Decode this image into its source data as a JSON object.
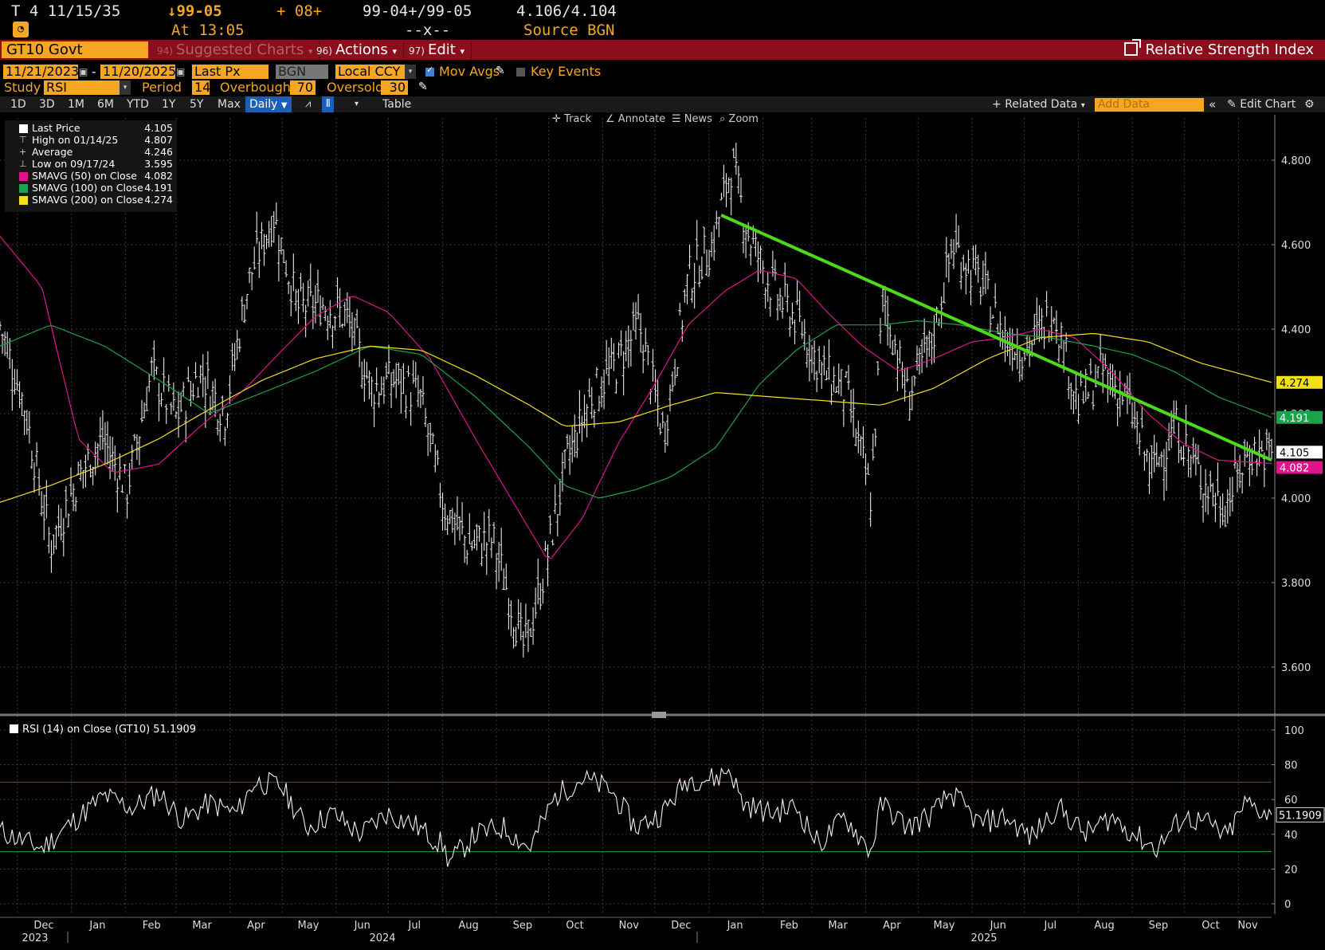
{
  "quote": {
    "ticker_time": "T 4 11/15/35",
    "last": "↓99-05",
    "change": "+ 08+",
    "bid_ask": "99-04+/99-05",
    "yields": "4.106/4.104",
    "at_time": "At 13:05",
    "dashes": "--x--",
    "source": "Source BGN"
  },
  "toolbar": {
    "security": "GT10 Govt",
    "suggested": "Suggested Charts",
    "suggested_num": "94)",
    "actions": "Actions",
    "actions_num": "96)",
    "edit": "Edit",
    "edit_num": "97)",
    "title": "Relative Strength Index"
  },
  "params": {
    "start_date": "11/21/2023",
    "end_date": "11/20/2025",
    "date_sep": "-",
    "field": "Last Px",
    "source": "BGN",
    "currency": "Local CCY",
    "mov_avgs": "Mov Avgs",
    "key_events": "Key Events",
    "study_label": "Study",
    "study": "RSI",
    "period_label": "Period",
    "period": "14",
    "overbought_label": "Overbought",
    "overbought": "70",
    "oversold_label": "Oversold",
    "oversold": "30"
  },
  "ranges": [
    "1D",
    "3D",
    "1M",
    "6M",
    "YTD",
    "1Y",
    "5Y",
    "Max"
  ],
  "frequency": "Daily",
  "table_label": "Table",
  "related_data": "Related Data",
  "add_data_placeholder": "Add Data",
  "edit_chart": "Edit Chart",
  "chart_tools": [
    "Track",
    "Annotate",
    "News",
    "Zoom"
  ],
  "legend": [
    {
      "name": "Last Price",
      "value": "4.105",
      "color": "#ffffff"
    },
    {
      "name": "High on 01/14/25",
      "value": "4.807",
      "color": ""
    },
    {
      "name": "Average",
      "value": "4.246",
      "color": ""
    },
    {
      "name": "Low on 09/17/24",
      "value": "3.595",
      "color": ""
    },
    {
      "name": "SMAVG (50)  on Close",
      "value": "4.082",
      "color": "#e0138c"
    },
    {
      "name": "SMAVG (100)  on Close",
      "value": "4.191",
      "color": "#1aa34a"
    },
    {
      "name": "SMAVG (200)  on Close",
      "value": "4.274",
      "color": "#f2e01b"
    }
  ],
  "rsi_legend": "RSI (14)  on Close (GT10) 51.1909",
  "colors": {
    "accent": "#f5a623",
    "command_bar": "#8b0e1d",
    "sma50": "#e0138c",
    "sma100": "#1aa34a",
    "sma200": "#f2e01b",
    "trendline": "#4bdb1a",
    "overbought_line": "#cc2222",
    "oversold_line": "#1aa34a"
  },
  "chart_data": [
    {
      "type": "ohlc",
      "title": "GT10 Govt",
      "ylim": [
        3.5,
        4.9
      ],
      "yticks": [
        "4.800",
        "4.600",
        "4.400",
        "4.200",
        "4.000",
        "3.800",
        "3.600"
      ],
      "ytick_values": [
        4.8,
        4.6,
        4.4,
        4.2,
        4.0,
        3.8,
        3.6
      ],
      "grid": true,
      "legend_position": "top-left",
      "x_months": [
        "Dec",
        "Jan",
        "Feb",
        "Mar",
        "Apr",
        "May",
        "Jun",
        "Jul",
        "Aug",
        "Sep",
        "Oct",
        "Nov",
        "Dec",
        "Jan",
        "Feb",
        "Mar",
        "Apr",
        "May",
        "Jun",
        "Jul",
        "Aug",
        "Sep",
        "Oct",
        "Nov"
      ],
      "x_years": [
        "2023",
        "2024",
        "2025"
      ],
      "x_range": [
        "2023-11-21",
        "2025-11-20"
      ],
      "price": {
        "name": "Last Price",
        "x": [
          "2023-11-21",
          "2023-12-05",
          "2023-12-20",
          "2024-01-05",
          "2024-01-19",
          "2024-02-02",
          "2024-02-16",
          "2024-03-01",
          "2024-03-15",
          "2024-03-29",
          "2024-04-12",
          "2024-04-26",
          "2024-05-10",
          "2024-05-24",
          "2024-06-07",
          "2024-06-21",
          "2024-07-05",
          "2024-07-19",
          "2024-08-02",
          "2024-08-16",
          "2024-08-30",
          "2024-09-17",
          "2024-09-27",
          "2024-10-11",
          "2024-10-25",
          "2024-11-08",
          "2024-11-22",
          "2024-12-06",
          "2024-12-20",
          "2025-01-03",
          "2025-01-14",
          "2025-01-24",
          "2025-02-07",
          "2025-02-21",
          "2025-03-07",
          "2025-03-21",
          "2025-04-04",
          "2025-04-11",
          "2025-04-25",
          "2025-05-09",
          "2025-05-21",
          "2025-06-06",
          "2025-06-20",
          "2025-07-03",
          "2025-07-18",
          "2025-08-01",
          "2025-08-15",
          "2025-08-29",
          "2025-09-12",
          "2025-09-26",
          "2025-10-10",
          "2025-10-24",
          "2025-11-07",
          "2025-11-20"
        ],
        "y": [
          4.41,
          4.22,
          3.89,
          4.05,
          4.14,
          4.02,
          4.3,
          4.19,
          4.3,
          4.2,
          4.52,
          4.67,
          4.45,
          4.46,
          4.43,
          4.26,
          4.28,
          4.24,
          3.98,
          3.89,
          3.9,
          3.64,
          3.8,
          4.08,
          4.24,
          4.31,
          4.41,
          4.15,
          4.52,
          4.6,
          4.79,
          4.62,
          4.49,
          4.42,
          4.3,
          4.25,
          4.0,
          4.48,
          4.24,
          4.37,
          4.6,
          4.51,
          4.38,
          4.35,
          4.45,
          4.22,
          4.3,
          4.23,
          4.06,
          4.17,
          4.05,
          3.98,
          4.11,
          4.105
        ]
      },
      "series": [
        {
          "name": "SMAVG (50)",
          "x": [
            "2023-11-21",
            "2023-12-15",
            "2024-01-05",
            "2024-01-25",
            "2024-02-20",
            "2024-03-15",
            "2024-04-10",
            "2024-05-01",
            "2024-05-20",
            "2024-06-10",
            "2024-07-01",
            "2024-07-25",
            "2024-08-20",
            "2024-09-15",
            "2024-10-01",
            "2024-10-20",
            "2024-11-10",
            "2024-12-01",
            "2024-12-20",
            "2025-01-10",
            "2025-01-30",
            "2025-02-20",
            "2025-03-10",
            "2025-03-30",
            "2025-04-20",
            "2025-05-10",
            "2025-06-01",
            "2025-06-20",
            "2025-07-10",
            "2025-07-30",
            "2025-08-20",
            "2025-09-10",
            "2025-09-30",
            "2025-10-20",
            "2025-11-20"
          ],
          "values": [
            4.62,
            4.5,
            4.14,
            4.06,
            4.08,
            4.17,
            4.26,
            4.35,
            4.43,
            4.48,
            4.44,
            4.33,
            4.14,
            3.96,
            3.85,
            3.95,
            4.13,
            4.27,
            4.41,
            4.49,
            4.54,
            4.52,
            4.44,
            4.36,
            4.3,
            4.33,
            4.37,
            4.38,
            4.4,
            4.38,
            4.3,
            4.2,
            4.13,
            4.09,
            4.082
          ]
        },
        {
          "name": "SMAVG (100)",
          "x": [
            "2023-11-21",
            "2023-12-20",
            "2024-01-20",
            "2024-02-20",
            "2024-03-20",
            "2024-04-20",
            "2024-05-20",
            "2024-06-20",
            "2024-07-20",
            "2024-08-20",
            "2024-09-20",
            "2024-10-10",
            "2024-10-30",
            "2024-11-20",
            "2024-12-10",
            "2025-01-05",
            "2025-01-30",
            "2025-02-20",
            "2025-03-15",
            "2025-04-10",
            "2025-05-01",
            "2025-05-25",
            "2025-06-20",
            "2025-07-15",
            "2025-08-10",
            "2025-09-01",
            "2025-09-25",
            "2025-10-20",
            "2025-11-20"
          ],
          "values": [
            4.36,
            4.41,
            4.36,
            4.28,
            4.2,
            4.25,
            4.3,
            4.36,
            4.34,
            4.24,
            4.12,
            4.03,
            4.0,
            4.02,
            4.05,
            4.12,
            4.27,
            4.35,
            4.41,
            4.41,
            4.42,
            4.41,
            4.39,
            4.38,
            4.36,
            4.34,
            4.3,
            4.24,
            4.191
          ]
        },
        {
          "name": "SMAVG (200)",
          "x": [
            "2023-11-21",
            "2023-12-20",
            "2024-01-20",
            "2024-02-20",
            "2024-03-20",
            "2024-04-20",
            "2024-05-20",
            "2024-06-20",
            "2024-07-20",
            "2024-08-20",
            "2024-09-20",
            "2024-10-10",
            "2024-11-10",
            "2024-12-10",
            "2025-01-05",
            "2025-02-05",
            "2025-03-10",
            "2025-04-10",
            "2025-05-10",
            "2025-06-10",
            "2025-07-10",
            "2025-08-10",
            "2025-09-10",
            "2025-10-10",
            "2025-11-20"
          ],
          "values": [
            3.99,
            4.03,
            4.08,
            4.14,
            4.21,
            4.28,
            4.33,
            4.36,
            4.35,
            4.29,
            4.22,
            4.17,
            4.18,
            4.22,
            4.25,
            4.24,
            4.23,
            4.22,
            4.26,
            4.33,
            4.38,
            4.39,
            4.37,
            4.32,
            4.274
          ]
        }
      ],
      "trendline": {
        "x": [
          "2025-01-08",
          "2025-11-20"
        ],
        "y": [
          4.67,
          4.09
        ]
      },
      "right_labels": [
        {
          "value": "4.274",
          "color": "#f2e01b",
          "text_color": "#000000"
        },
        {
          "value": "4.191",
          "color": "#1aa34a",
          "text_color": "#ffffff"
        },
        {
          "value": "4.105",
          "color": "#ffffff",
          "text_color": "#000000"
        },
        {
          "value": "4.082",
          "color": "#e0138c",
          "text_color": "#ffffff"
        }
      ]
    },
    {
      "type": "line",
      "title": "RSI (14) on Close (GT10)",
      "ylim": [
        -5,
        105
      ],
      "yticks": [
        "100",
        "80",
        "60",
        "40",
        "20",
        "0"
      ],
      "ytick_values": [
        100,
        80,
        60,
        40,
        20,
        0
      ],
      "overbought": 70,
      "oversold": 30,
      "series": [
        {
          "name": "RSI (14)",
          "x": [
            "2023-11-21",
            "2023-12-05",
            "2023-12-15",
            "2024-01-05",
            "2024-01-20",
            "2024-02-05",
            "2024-02-20",
            "2024-03-05",
            "2024-03-20",
            "2024-04-05",
            "2024-04-15",
            "2024-04-30",
            "2024-05-15",
            "2024-05-30",
            "2024-06-15",
            "2024-06-30",
            "2024-07-15",
            "2024-08-01",
            "2024-08-05",
            "2024-08-20",
            "2024-09-05",
            "2024-09-20",
            "2024-10-05",
            "2024-10-20",
            "2024-11-05",
            "2024-11-20",
            "2024-12-05",
            "2024-12-20",
            "2025-01-05",
            "2025-01-13",
            "2025-01-20",
            "2025-02-05",
            "2025-02-20",
            "2025-03-05",
            "2025-03-20",
            "2025-04-04",
            "2025-04-10",
            "2025-04-25",
            "2025-05-10",
            "2025-05-20",
            "2025-06-05",
            "2025-06-20",
            "2025-07-05",
            "2025-07-20",
            "2025-08-05",
            "2025-08-20",
            "2025-09-05",
            "2025-09-15",
            "2025-09-30",
            "2025-10-15",
            "2025-10-25",
            "2025-11-05",
            "2025-11-20"
          ],
          "values": [
            42,
            36,
            32,
            50,
            62,
            55,
            64,
            48,
            58,
            52,
            70,
            68,
            44,
            52,
            40,
            52,
            46,
            34,
            24,
            40,
            44,
            32,
            62,
            72,
            66,
            44,
            52,
            72,
            72,
            78,
            58,
            52,
            56,
            34,
            50,
            30,
            58,
            44,
            52,
            64,
            46,
            50,
            38,
            56,
            40,
            50,
            38,
            32,
            50,
            46,
            38,
            58,
            51.1909
          ]
        }
      ],
      "right_label": {
        "value": "51.1909"
      }
    }
  ]
}
